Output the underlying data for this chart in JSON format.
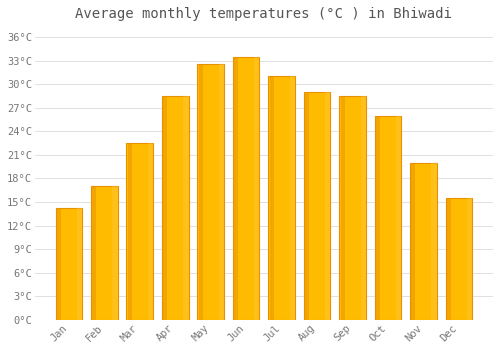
{
  "title": "Average monthly temperatures (°C ) in Bhiwadi",
  "months": [
    "Jan",
    "Feb",
    "Mar",
    "Apr",
    "May",
    "Jun",
    "Jul",
    "Aug",
    "Sep",
    "Oct",
    "Nov",
    "Dec"
  ],
  "temperatures": [
    14.2,
    17.0,
    22.5,
    28.5,
    32.5,
    33.5,
    31.0,
    29.0,
    28.5,
    26.0,
    20.0,
    15.5
  ],
  "bar_color_main": "#FFBB00",
  "bar_color_left": "#E89000",
  "bar_color_right": "#FFC840",
  "background_color": "#FFFFFF",
  "grid_color": "#E0E0E0",
  "text_color": "#777777",
  "title_color": "#555555",
  "ylim": [
    0,
    37
  ],
  "yticks": [
    0,
    3,
    6,
    9,
    12,
    15,
    18,
    21,
    24,
    27,
    30,
    33,
    36
  ],
  "ylabel_suffix": "°C",
  "tick_fontsize": 7.5,
  "title_fontsize": 10,
  "bar_width": 0.75
}
